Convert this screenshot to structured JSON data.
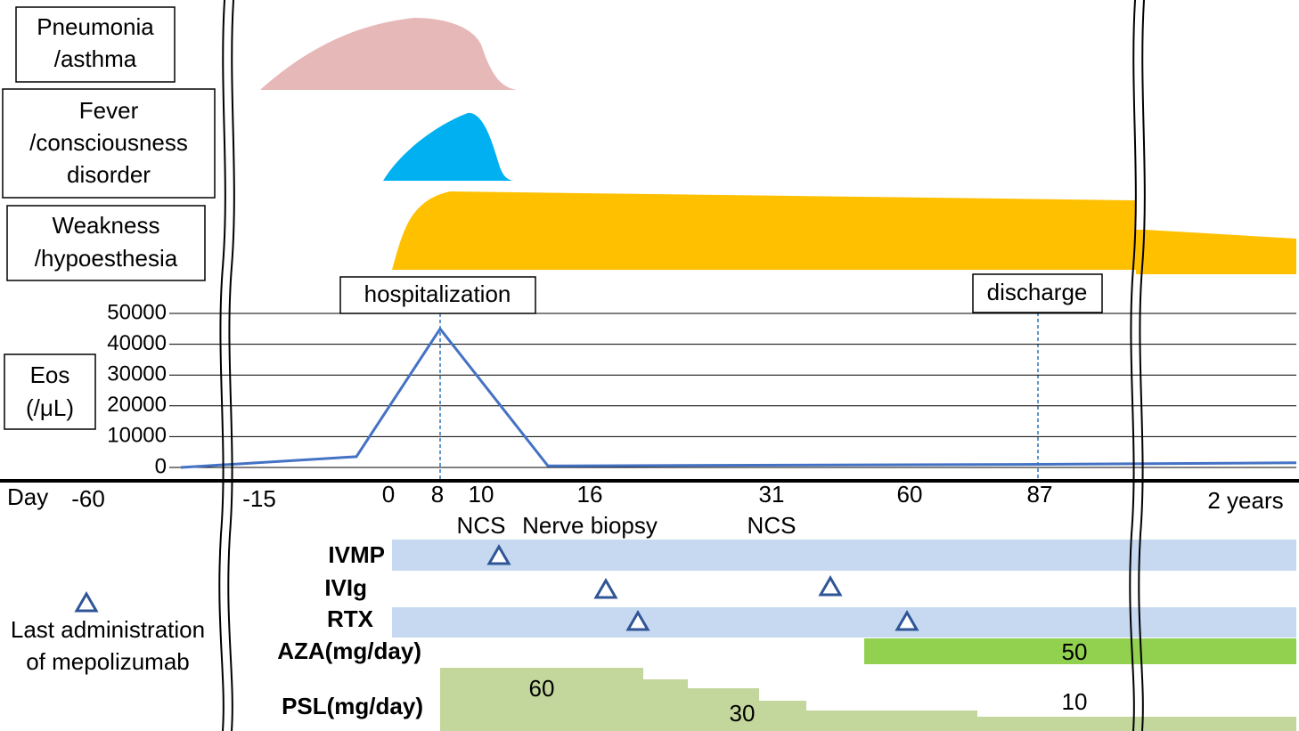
{
  "symptoms": [
    [
      "Pneumonia",
      "/asthma"
    ],
    [
      "Fever",
      "/consciousness",
      "disorder"
    ],
    [
      "Weakness",
      "/hypoesthesia"
    ]
  ],
  "events": [
    "hospitalization",
    "discharge"
  ],
  "eos": {
    "label": [
      "Eos",
      "(/μL)"
    ],
    "ylim": [
      0,
      50000
    ],
    "yticks": [
      0,
      10000,
      20000,
      30000,
      40000,
      50000
    ],
    "values": [
      0,
      3500,
      45000,
      500,
      1000,
      1500
    ]
  },
  "days": {
    "label": "Day",
    "ticks": [
      "-60",
      "-15",
      "0",
      "8",
      "10",
      "16",
      "31",
      "60",
      "87",
      "2 years"
    ]
  },
  "procedures": [
    "NCS",
    "Nerve biopsy",
    "NCS"
  ],
  "treatments": [
    "IVMP",
    "IVIg",
    "RTX",
    "AZA(mg/day)",
    "PSL(mg/day)"
  ],
  "doses": [
    "50",
    "60",
    "30",
    "10"
  ],
  "legend": [
    "Last administration",
    "of mepolizumab"
  ]
}
